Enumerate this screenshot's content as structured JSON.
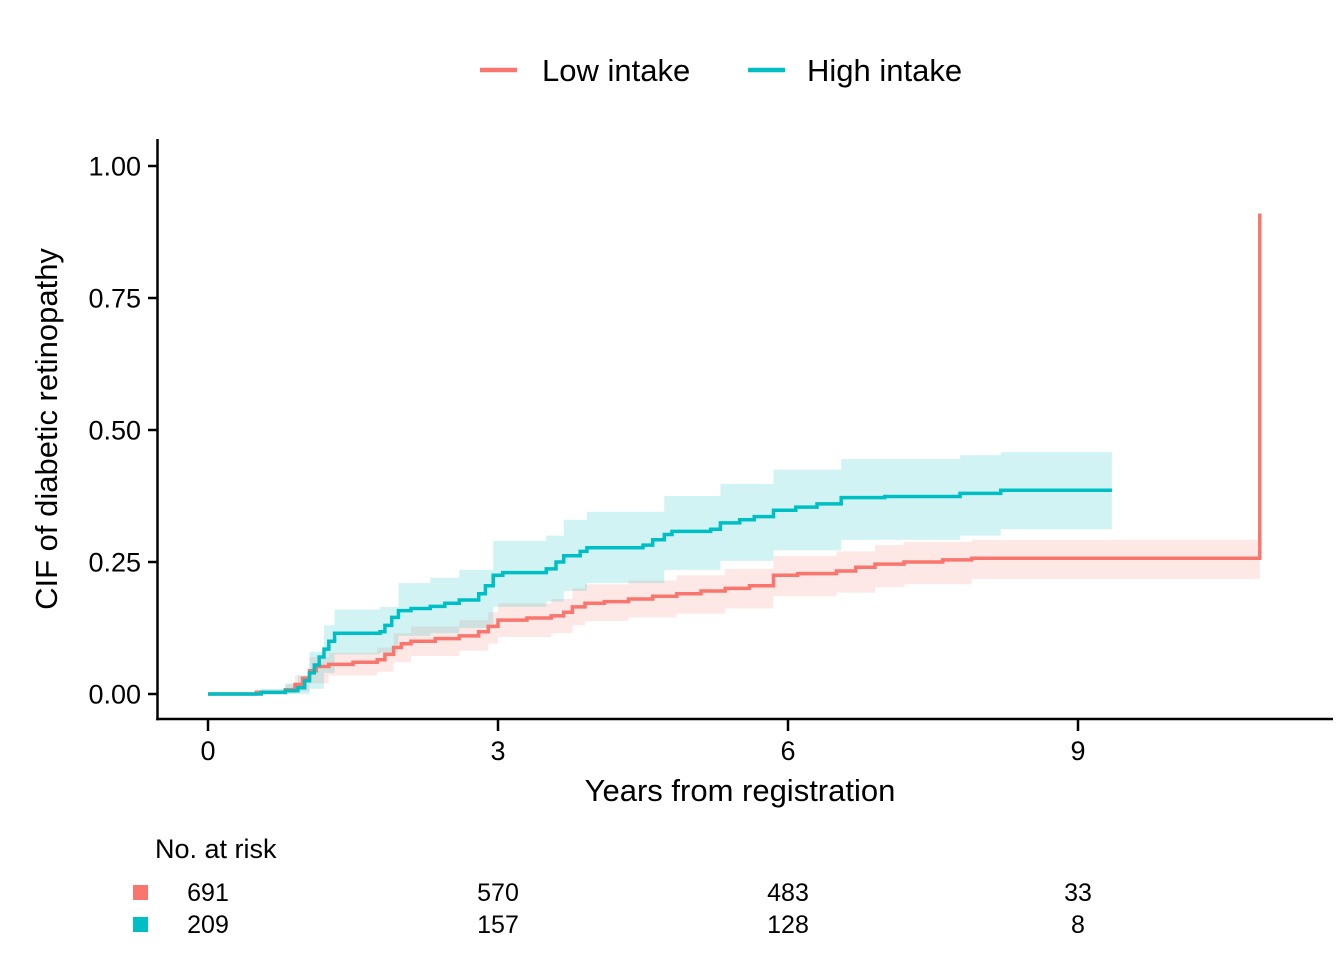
{
  "colors": {
    "low_intake": "#F8766D",
    "high_intake": "#00BFC4",
    "low_band": "rgba(248,118,109,0.17)",
    "high_band": "rgba(0,191,196,0.18)",
    "axis": "#000000",
    "background": "#FFFFFF"
  },
  "chart_data": {
    "type": "line",
    "subtype": "step-cumulative-incidence-with-confidence-bands",
    "title": "",
    "xlabel": "Years from registration",
    "ylabel": "CIF of diabetic retinopathy",
    "xlim": [
      0,
      11.6
    ],
    "ylim": [
      0,
      1.0
    ],
    "x_ticks": [
      0,
      3,
      6,
      9
    ],
    "x_tick_labels": [
      "0",
      "3",
      "6",
      "9"
    ],
    "y_ticks": [
      0,
      0.25,
      0.5,
      0.75,
      1.0
    ],
    "y_tick_labels": [
      "0.00",
      "0.25",
      "0.50",
      "0.75",
      "1.00"
    ],
    "grid": false,
    "legend_position": "top-center",
    "series": [
      {
        "name": "Low intake",
        "color": "#F8766D",
        "band_color": "rgba(248,118,109,0.17)",
        "steps": [
          [
            0,
            0
          ],
          [
            0.5,
            0.003
          ],
          [
            0.8,
            0.008
          ],
          [
            0.9,
            0.018
          ],
          [
            0.98,
            0.03
          ],
          [
            1.05,
            0.044
          ],
          [
            1.12,
            0.052
          ],
          [
            1.25,
            0.056
          ],
          [
            1.5,
            0.06
          ],
          [
            1.75,
            0.065
          ],
          [
            1.83,
            0.075
          ],
          [
            1.92,
            0.088
          ],
          [
            2.0,
            0.095
          ],
          [
            2.1,
            0.1
          ],
          [
            2.35,
            0.105
          ],
          [
            2.6,
            0.11
          ],
          [
            2.8,
            0.118
          ],
          [
            2.9,
            0.128
          ],
          [
            3.0,
            0.14
          ],
          [
            3.3,
            0.144
          ],
          [
            3.55,
            0.148
          ],
          [
            3.68,
            0.155
          ],
          [
            3.77,
            0.165
          ],
          [
            3.9,
            0.172
          ],
          [
            4.1,
            0.175
          ],
          [
            4.35,
            0.18
          ],
          [
            4.6,
            0.185
          ],
          [
            4.85,
            0.19
          ],
          [
            5.1,
            0.195
          ],
          [
            5.35,
            0.2
          ],
          [
            5.6,
            0.205
          ],
          [
            5.85,
            0.225
          ],
          [
            6.1,
            0.228
          ],
          [
            6.5,
            0.233
          ],
          [
            6.7,
            0.24
          ],
          [
            6.9,
            0.246
          ],
          [
            7.2,
            0.25
          ],
          [
            7.6,
            0.254
          ],
          [
            7.9,
            0.257
          ],
          [
            10.85,
            0.257
          ],
          [
            10.88,
            0.91
          ]
        ],
        "band": [
          [
            0,
            0,
            0
          ],
          [
            0.5,
            0,
            0.008
          ],
          [
            0.8,
            0.001,
            0.018
          ],
          [
            0.9,
            0.005,
            0.035
          ],
          [
            1.05,
            0.02,
            0.07
          ],
          [
            1.25,
            0.035,
            0.078
          ],
          [
            1.75,
            0.042,
            0.088
          ],
          [
            1.92,
            0.06,
            0.115
          ],
          [
            2.1,
            0.072,
            0.128
          ],
          [
            2.6,
            0.082,
            0.14
          ],
          [
            2.9,
            0.095,
            0.155
          ],
          [
            3.0,
            0.108,
            0.172
          ],
          [
            3.55,
            0.115,
            0.18
          ],
          [
            3.77,
            0.13,
            0.2
          ],
          [
            3.9,
            0.138,
            0.208
          ],
          [
            4.35,
            0.145,
            0.215
          ],
          [
            4.85,
            0.152,
            0.225
          ],
          [
            5.35,
            0.162,
            0.237
          ],
          [
            5.85,
            0.185,
            0.262
          ],
          [
            6.5,
            0.192,
            0.27
          ],
          [
            6.9,
            0.202,
            0.282
          ],
          [
            7.2,
            0.208,
            0.288
          ],
          [
            7.9,
            0.218,
            0.292
          ],
          [
            10.88,
            0.218,
            0.292
          ]
        ]
      },
      {
        "name": "High intake",
        "color": "#00BFC4",
        "band_color": "rgba(0,191,196,0.18)",
        "steps": [
          [
            0,
            0
          ],
          [
            0.55,
            0.003
          ],
          [
            0.8,
            0.006
          ],
          [
            0.93,
            0.012
          ],
          [
            1.0,
            0.025
          ],
          [
            1.05,
            0.04
          ],
          [
            1.1,
            0.055
          ],
          [
            1.15,
            0.07
          ],
          [
            1.2,
            0.085
          ],
          [
            1.25,
            0.1
          ],
          [
            1.31,
            0.115
          ],
          [
            1.78,
            0.118
          ],
          [
            1.83,
            0.13
          ],
          [
            1.9,
            0.145
          ],
          [
            1.97,
            0.158
          ],
          [
            2.1,
            0.162
          ],
          [
            2.3,
            0.166
          ],
          [
            2.45,
            0.172
          ],
          [
            2.6,
            0.178
          ],
          [
            2.8,
            0.19
          ],
          [
            2.87,
            0.205
          ],
          [
            2.95,
            0.225
          ],
          [
            3.05,
            0.23
          ],
          [
            3.5,
            0.237
          ],
          [
            3.6,
            0.25
          ],
          [
            3.68,
            0.262
          ],
          [
            3.85,
            0.27
          ],
          [
            3.92,
            0.277
          ],
          [
            4.5,
            0.282
          ],
          [
            4.6,
            0.292
          ],
          [
            4.72,
            0.302
          ],
          [
            4.8,
            0.308
          ],
          [
            5.2,
            0.312
          ],
          [
            5.3,
            0.324
          ],
          [
            5.5,
            0.33
          ],
          [
            5.65,
            0.336
          ],
          [
            5.85,
            0.348
          ],
          [
            6.08,
            0.354
          ],
          [
            6.3,
            0.36
          ],
          [
            6.55,
            0.372
          ],
          [
            7.0,
            0.374
          ],
          [
            7.78,
            0.38
          ],
          [
            8.2,
            0.386
          ],
          [
            9.35,
            0.386
          ]
        ],
        "band": [
          [
            0,
            0,
            0
          ],
          [
            0.55,
            0,
            0.01
          ],
          [
            0.8,
            0,
            0.02
          ],
          [
            0.93,
            0,
            0.035
          ],
          [
            1.05,
            0.01,
            0.08
          ],
          [
            1.2,
            0.04,
            0.13
          ],
          [
            1.31,
            0.075,
            0.16
          ],
          [
            1.78,
            0.078,
            0.165
          ],
          [
            1.97,
            0.11,
            0.21
          ],
          [
            2.3,
            0.115,
            0.22
          ],
          [
            2.6,
            0.125,
            0.235
          ],
          [
            2.95,
            0.165,
            0.29
          ],
          [
            3.5,
            0.175,
            0.3
          ],
          [
            3.68,
            0.195,
            0.33
          ],
          [
            3.92,
            0.21,
            0.345
          ],
          [
            4.72,
            0.235,
            0.375
          ],
          [
            5.3,
            0.252,
            0.398
          ],
          [
            5.85,
            0.272,
            0.425
          ],
          [
            6.55,
            0.292,
            0.445
          ],
          [
            7.78,
            0.3,
            0.452
          ],
          [
            8.2,
            0.312,
            0.458
          ],
          [
            9.35,
            0.312,
            0.458
          ]
        ]
      }
    ],
    "risk_table": {
      "title": "No. at risk",
      "times": [
        0,
        3,
        6,
        9
      ],
      "rows": [
        {
          "name": "Low intake",
          "color": "#F8766D",
          "counts": [
            "691",
            "570",
            "483",
            "33"
          ]
        },
        {
          "name": "High intake",
          "color": "#00BFC4",
          "counts": [
            "209",
            "157",
            "128",
            "8"
          ]
        }
      ]
    }
  }
}
